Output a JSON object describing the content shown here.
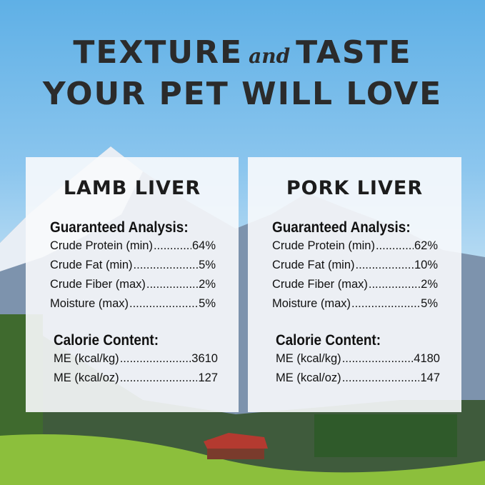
{
  "headline": {
    "line1_a": "TEXTURE",
    "line1_and": "and",
    "line1_b": "TASTE",
    "line2": "YOUR PET WILL LOVE"
  },
  "products": [
    {
      "name": "LAMB LIVER",
      "analysis_title": "Guaranteed Analysis:",
      "analysis": [
        {
          "label": "Crude Protein (min)",
          "value": "64%"
        },
        {
          "label": "Crude Fat (min)",
          "value": "5%"
        },
        {
          "label": "Crude Fiber (max)",
          "value": "2%"
        },
        {
          "label": "Moisture (max)",
          "value": "5%"
        }
      ],
      "calorie_title": "Calorie Content:",
      "calories": [
        {
          "label": "ME (kcal/kg)",
          "value": "3610"
        },
        {
          "label": "ME (kcal/oz)",
          "value": "127"
        }
      ]
    },
    {
      "name": "PORK LIVER",
      "analysis_title": "Guaranteed Analysis:",
      "analysis": [
        {
          "label": "Crude Protein (min)",
          "value": "62%"
        },
        {
          "label": "Crude Fat (min)",
          "value": "10%"
        },
        {
          "label": "Crude Fiber (max)",
          "value": "2%"
        },
        {
          "label": "Moisture (max)",
          "value": "5%"
        }
      ],
      "calorie_title": "Calorie Content:",
      "calories": [
        {
          "label": "ME (kcal/kg)",
          "value": "4180"
        },
        {
          "label": "ME (kcal/oz)",
          "value": "147"
        }
      ]
    }
  ]
}
